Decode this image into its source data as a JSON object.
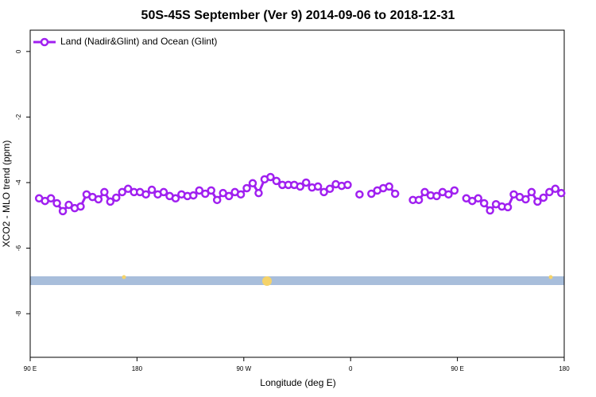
{
  "chart_data": {
    "type": "line",
    "title": "50S-45S September (Ver 9)   2014-09-06 to 2018-12-31",
    "x_label": "Longitude (deg E)",
    "y_label": "XCO2 - MLO trend (ppm)",
    "xlim": [
      90,
      540
    ],
    "xticks": [
      {
        "value": 90,
        "label": "90 E"
      },
      {
        "value": 180,
        "label": "180"
      },
      {
        "value": 270,
        "label": "90 W"
      },
      {
        "value": 360,
        "label": "0"
      },
      {
        "value": 450,
        "label": "90 E"
      },
      {
        "value": 540,
        "label": "180"
      }
    ],
    "ylim": [
      -9.33,
      0.65
    ],
    "yticks": [
      0,
      -2,
      -4,
      -6,
      -8
    ],
    "legend": "top-left",
    "x": [
      97.5,
      102.5,
      107.5,
      112.5,
      117.5,
      122.5,
      127.5,
      132.5,
      137.5,
      142.5,
      147.5,
      152.5,
      157.5,
      162.5,
      167.5,
      172.5,
      177.5,
      182.5,
      187.5,
      192.5,
      197.5,
      202.5,
      207.5,
      212.5,
      217.5,
      222.5,
      227.5,
      232.5,
      237.5,
      242.5,
      247.5,
      252.5,
      257.5,
      262.5,
      267.5,
      272.5,
      277.5,
      282.5,
      287.5,
      292.5,
      297.5,
      302.5,
      307.5,
      312.5,
      317.5,
      322.5,
      327.5,
      332.5,
      337.5,
      342.5,
      347.5,
      352.5,
      357.5,
      362.5,
      367.5,
      372.5,
      377.5,
      382.5,
      387.5,
      392.5,
      397.5,
      402.5,
      407.5,
      412.5,
      417.5,
      422.5,
      427.5,
      432.5,
      437.5,
      442.5,
      447.5,
      452.5,
      457.5,
      462.5,
      467.5,
      472.5,
      477.5,
      482.5,
      487.5,
      492.5,
      497.5,
      502.5,
      507.5,
      512.5,
      517.5,
      522.5,
      527.5,
      532.5,
      537.5
    ],
    "series": [
      {
        "name": "Land (Nadir&Glint) and Ocean (Glint)",
        "color": "#a020f0",
        "values": [
          -4.48,
          -4.56,
          -4.48,
          -4.63,
          -4.87,
          -4.68,
          -4.78,
          -4.73,
          -4.36,
          -4.44,
          -4.51,
          -4.29,
          -4.58,
          -4.46,
          -4.29,
          -4.19,
          -4.29,
          -4.29,
          -4.36,
          -4.22,
          -4.36,
          -4.29,
          -4.41,
          -4.48,
          -4.36,
          -4.41,
          -4.39,
          -4.24,
          -4.34,
          -4.24,
          -4.53,
          -4.32,
          -4.41,
          -4.29,
          -4.36,
          -4.17,
          -4.02,
          -4.32,
          -3.9,
          -3.83,
          -3.95,
          -4.07,
          -4.07,
          -4.07,
          -4.12,
          -4.0,
          -4.15,
          -4.12,
          -4.29,
          -4.19,
          -4.05,
          -4.1,
          -4.07,
          null,
          -4.36,
          null,
          -4.34,
          -4.24,
          -4.17,
          -4.12,
          -4.34,
          null,
          null,
          -4.53,
          -4.53,
          -4.29,
          -4.39,
          -4.41,
          -4.29,
          -4.36,
          -4.24,
          null,
          -4.48,
          -4.56,
          -4.48,
          -4.63,
          -4.85,
          -4.66,
          -4.73,
          -4.75,
          -4.36,
          -4.44,
          -4.51,
          -4.29,
          -4.58,
          -4.46,
          -4.29,
          -4.19,
          -4.32
        ]
      }
    ]
  }
}
